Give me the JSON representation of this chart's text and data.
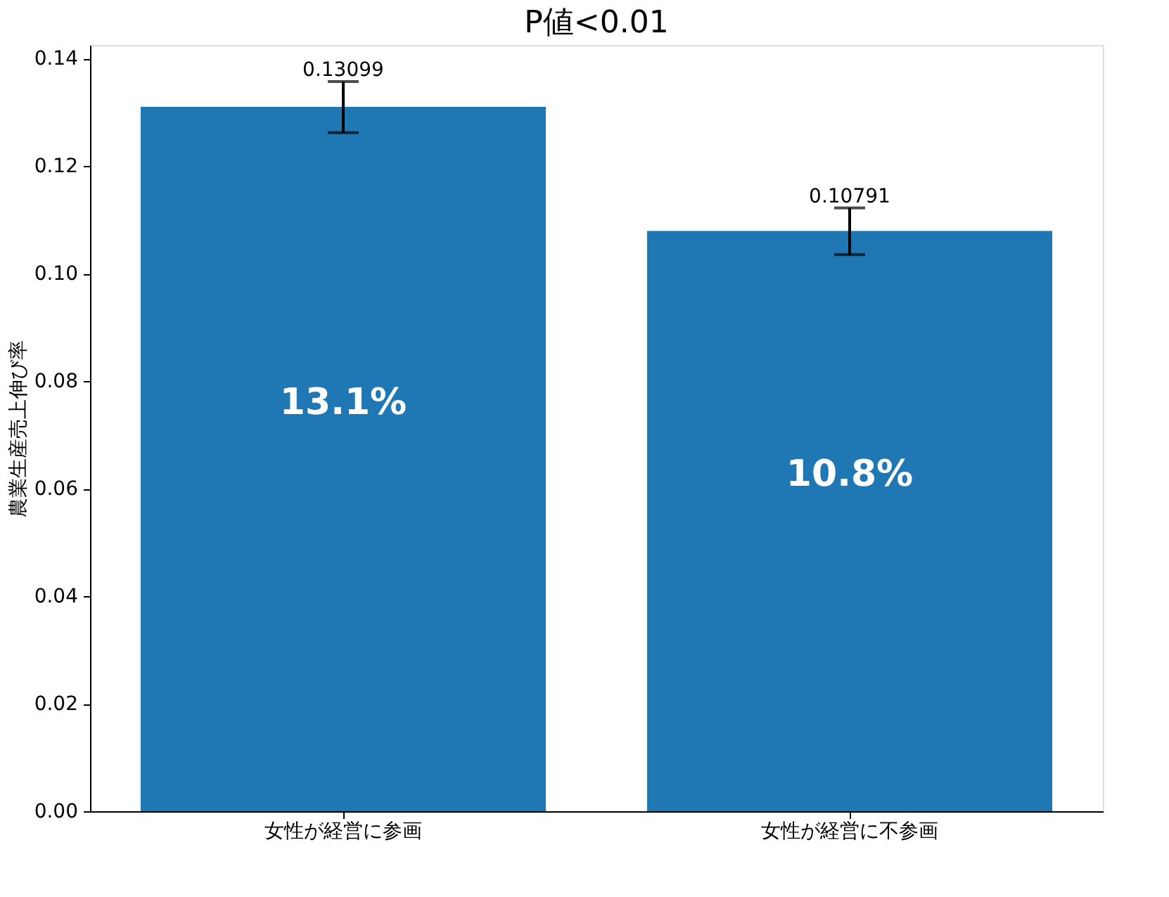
{
  "chart_data": {
    "type": "bar",
    "title": "P値<0.01",
    "ylabel": "農業生産売上伸び率",
    "categories": [
      "女性が経営に参画",
      "女性が経営に不参画"
    ],
    "values": [
      0.13099,
      0.10791
    ],
    "color": "#1f77b4",
    "errors": [
      [
        0.1262,
        0.1357
      ],
      [
        0.1035,
        0.1122
      ]
    ],
    "data_labels": true,
    "annotations": [
      "13.1%",
      "10.8%"
    ],
    "ylim": [
      0,
      0.1425
    ],
    "yticks": [
      {
        "value": 0,
        "label": "0.00"
      },
      {
        "value": 0.02,
        "label": "0.02"
      },
      {
        "value": 0.04,
        "label": "0.04"
      },
      {
        "value": 0.06,
        "label": "0.06"
      },
      {
        "value": 0.08,
        "label": "0.08"
      },
      {
        "value": 0.1,
        "label": "0.10"
      },
      {
        "value": 0.12,
        "label": "0.12"
      },
      {
        "value": 0.14,
        "label": "0.14"
      }
    ],
    "grid": false
  }
}
